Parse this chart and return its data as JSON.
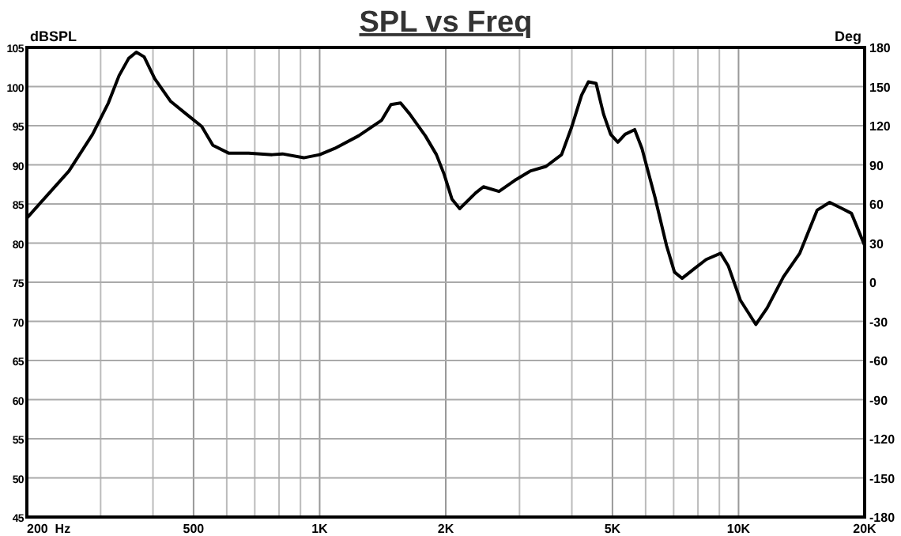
{
  "chart_data": {
    "type": "line",
    "title": "SPL vs Freq",
    "ylabel": "dBSPL",
    "y2label": "Deg",
    "log": "x",
    "grid": true,
    "color": "#000000",
    "x": [
      200,
      221,
      252,
      287,
      313,
      332,
      350,
      365,
      381,
      404,
      441,
      480,
      523,
      556,
      606,
      677,
      770,
      815,
      916,
      1000,
      1087,
      1238,
      1406,
      1480,
      1560,
      1640,
      1788,
      1900,
      1982,
      2070,
      2160,
      2356,
      2460,
      2680,
      2920,
      3180,
      3470,
      3780,
      4000,
      4220,
      4380,
      4570,
      4760,
      4950,
      5150,
      5360,
      5650,
      5880,
      6320,
      6730,
      7030,
      7330,
      7830,
      8370,
      9060,
      9450,
      10100,
      11000,
      11700,
      12800,
      14000,
      15400,
      16500,
      17700,
      18600,
      20000
    ],
    "values": [
      83.2,
      85.8,
      89.2,
      93.9,
      97.9,
      101.4,
      103.6,
      104.4,
      103.8,
      101,
      98.1,
      96.5,
      94.9,
      92.5,
      91.5,
      91.5,
      91.3,
      91.4,
      90.9,
      91.3,
      92.1,
      93.7,
      95.7,
      97.7,
      97.9,
      96.5,
      93.7,
      91.3,
      88.8,
      85.6,
      84.4,
      86.4,
      87.2,
      86.6,
      88,
      89.2,
      89.8,
      91.3,
      94.9,
      98.9,
      100.6,
      100.4,
      96.5,
      93.9,
      92.9,
      93.9,
      94.5,
      92.1,
      85.8,
      79.7,
      76.3,
      75.5,
      76.7,
      77.9,
      78.7,
      77.1,
      72.7,
      69.6,
      71.7,
      75.7,
      78.7,
      84.2,
      85.2,
      84.4,
      83.8,
      79.7
    ],
    "xlim": [
      200,
      20000
    ],
    "xticks": [
      {
        "value": 200,
        "label": "200  Hz"
      },
      {
        "value": 300,
        "label": null
      },
      {
        "value": 400,
        "label": null
      },
      {
        "value": 500,
        "label": "500"
      },
      {
        "value": 600,
        "label": null
      },
      {
        "value": 700,
        "label": null
      },
      {
        "value": 800,
        "label": null
      },
      {
        "value": 900,
        "label": null
      },
      {
        "value": 1000,
        "label": "1K"
      },
      {
        "value": 2000,
        "label": "2K"
      },
      {
        "value": 3000,
        "label": null
      },
      {
        "value": 4000,
        "label": null
      },
      {
        "value": 5000,
        "label": "5K"
      },
      {
        "value": 6000,
        "label": null
      },
      {
        "value": 7000,
        "label": null
      },
      {
        "value": 8000,
        "label": null
      },
      {
        "value": 9000,
        "label": null
      },
      {
        "value": 10000,
        "label": "10K"
      },
      {
        "value": 20000,
        "label": "20K"
      }
    ],
    "ylim": [
      45,
      105
    ],
    "yticks": [
      45,
      50,
      55,
      60,
      65,
      70,
      75,
      80,
      85,
      90,
      95,
      100,
      105
    ],
    "y2lim": [
      -180,
      180
    ],
    "y2ticks": [
      -180,
      -150,
      -120,
      -90,
      -60,
      -30,
      0,
      30,
      60,
      90,
      120,
      150,
      180
    ]
  }
}
